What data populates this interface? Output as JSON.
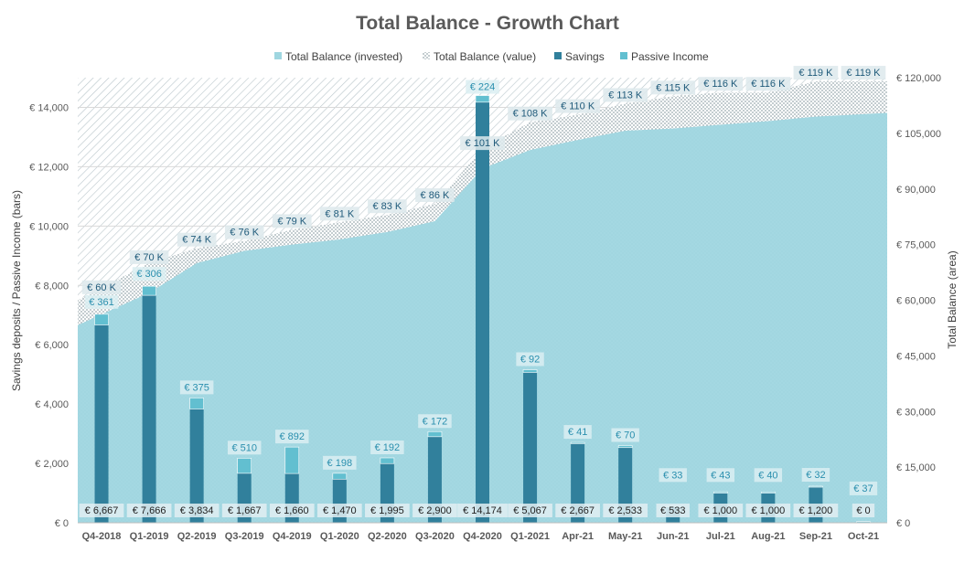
{
  "colors": {
    "invested": "#9fd6e0",
    "value_hatch": "#b5c3c8",
    "savings": "#31809c",
    "passive": "#62bfd0",
    "grid": "#d9d9d9"
  },
  "chart_data": {
    "type": "bar+area",
    "title": "Total Balance - Growth Chart",
    "ylabel": "Savings deposits / Passive Income (bars)",
    "y2label": "Total Balance (area)",
    "ylim": [
      0,
      15000
    ],
    "y2lim": [
      0,
      120000
    ],
    "grid": true,
    "legend_position": "top",
    "yticks": [
      "€ 0",
      "€ 2,000",
      "€ 4,000",
      "€ 6,000",
      "€ 8,000",
      "€ 10,000",
      "€ 12,000",
      "€ 14,000"
    ],
    "yticks_values": [
      0,
      2000,
      4000,
      6000,
      8000,
      10000,
      12000,
      14000
    ],
    "y2ticks": [
      "€ 0",
      "€ 15,000",
      "€ 30,000",
      "€ 45,000",
      "€ 60,000",
      "€ 75,000",
      "€ 90,000",
      "€ 105,000",
      "€ 120,000"
    ],
    "y2ticks_values": [
      0,
      15000,
      30000,
      45000,
      60000,
      75000,
      90000,
      105000,
      120000
    ],
    "categories": [
      "Q4-2018",
      "Q1-2019",
      "Q2-2019",
      "Q3-2019",
      "Q4-2019",
      "Q1-2020",
      "Q2-2020",
      "Q3-2020",
      "Q4-2020",
      "Q1-2021",
      "Apr-21",
      "May-21",
      "Jun-21",
      "Jul-21",
      "Aug-21",
      "Sep-21",
      "Oct-21"
    ],
    "legend": [
      "Total Balance (invested)",
      "Total Balance (value)",
      "Savings",
      "Passive Income"
    ],
    "series": [
      {
        "name": "Total Balance (invested)",
        "axis": "secondary",
        "values": [
          53300,
          62000,
          70000,
          73300,
          75000,
          76400,
          78400,
          81300,
          95500,
          100500,
          103200,
          105700,
          106300,
          107300,
          108300,
          109500,
          110500
        ]
      },
      {
        "name": "Total Balance (value)",
        "axis": "secondary",
        "values": [
          60000,
          70000,
          74000,
          76000,
          79000,
          81000,
          83000,
          86000,
          101000,
          108000,
          110000,
          113000,
          115000,
          116000,
          116000,
          119000,
          119000
        ],
        "labels": [
          "€ 60 K",
          "€ 70 K",
          "€ 74 K",
          "€ 76 K",
          "€ 79 K",
          "€ 81 K",
          "€ 83 K",
          "€ 86 K",
          "€ 101 K",
          "€ 108 K",
          "€ 110 K",
          "€ 113 K",
          "€ 115 K",
          "€ 116 K",
          "€ 116 K",
          "€ 119 K",
          "€ 119 K"
        ]
      },
      {
        "name": "Savings",
        "axis": "primary",
        "values": [
          6667,
          7666,
          3834,
          1667,
          1660,
          1470,
          1995,
          2900,
          14174,
          5067,
          2667,
          2533,
          533,
          1000,
          1000,
          1200,
          0
        ],
        "labels": [
          "€ 6,667",
          "€ 7,666",
          "€ 3,834",
          "€ 1,667",
          "€ 1,660",
          "€ 1,470",
          "€ 1,995",
          "€ 2,900",
          "€ 14,174",
          "€ 5,067",
          "€ 2,667",
          "€ 2,533",
          "€ 533",
          "€ 1,000",
          "€ 1,000",
          "€ 1,200",
          "€ 0"
        ]
      },
      {
        "name": "Passive Income",
        "axis": "primary",
        "values": [
          361,
          306,
          375,
          510,
          892,
          198,
          192,
          172,
          224,
          92,
          41,
          70,
          33,
          43,
          40,
          32,
          37
        ],
        "labels": [
          "€ 361",
          "€ 306",
          "€ 375",
          "€ 510",
          "€ 892",
          "€ 198",
          "€ 192",
          "€ 172",
          "€ 224",
          "€ 92",
          "€ 41",
          "€ 70",
          "€ 33",
          "€ 43",
          "€ 40",
          "€ 32",
          "€ 37"
        ]
      }
    ],
    "label_202_extra": "€ 119 K"
  }
}
